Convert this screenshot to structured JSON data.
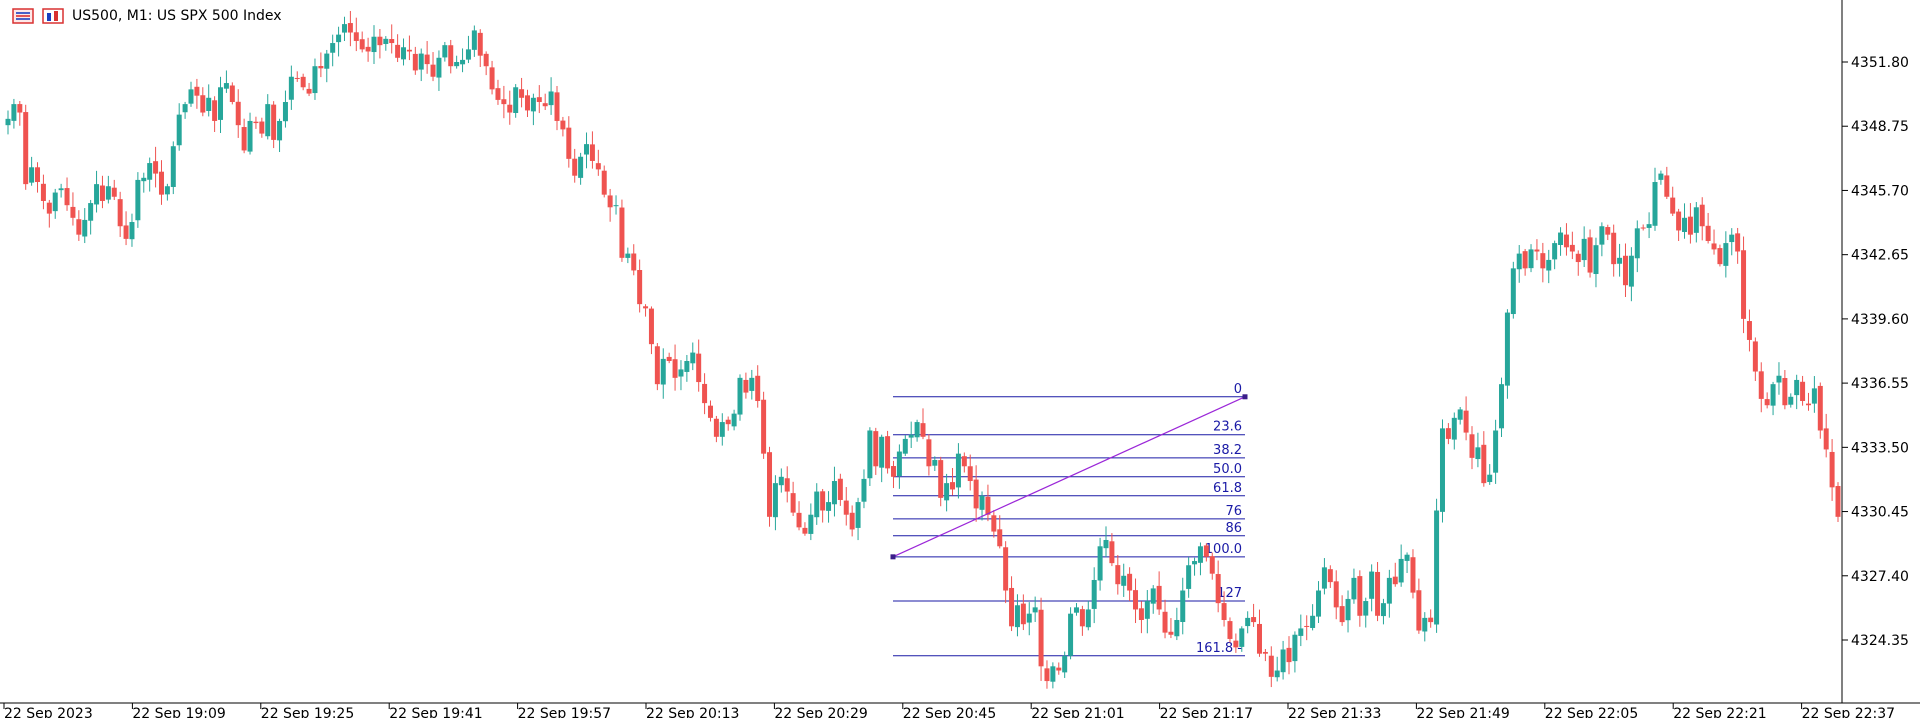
{
  "header": {
    "symbol_label": "US500, M1:  US SPX 500 Index",
    "menu_icon": "chart-menu-icon",
    "type_icon": "chart-type-icon"
  },
  "colors": {
    "bull": "#26a69a",
    "bear": "#ef5350",
    "fib_line": "#1a1aa6",
    "trend_line": "#9b27d8",
    "axis": "#000000",
    "background": "#ffffff"
  },
  "chart_data": {
    "type": "candlestick",
    "title": "US500, M1:  US SPX 500 Index",
    "x_ticks": [
      "22 Sep 2023",
      "22 Sep 19:09",
      "22 Sep 19:25",
      "22 Sep 19:41",
      "22 Sep 19:57",
      "22 Sep 20:13",
      "22 Sep 20:29",
      "22 Sep 20:45",
      "22 Sep 21:01",
      "22 Sep 21:17",
      "22 Sep 21:33",
      "22 Sep 21:49",
      "22 Sep 22:05",
      "22 Sep 22:21",
      "22 Sep 22:37"
    ],
    "y_ticks": [
      "4351.80",
      "4348.75",
      "4345.70",
      "4342.65",
      "4339.60",
      "4336.55",
      "4333.50",
      "4330.45",
      "4327.40",
      "4324.35"
    ],
    "ylim": [
      4321.0,
      4354.0
    ],
    "grid": false,
    "closes": [
      4349.1,
      4349.8,
      4349.4,
      4346.0,
      4346.8,
      4346.1,
      4345.2,
      4344.6,
      4345.6,
      4345.8,
      4345.0,
      4344.4,
      4343.6,
      4344.3,
      4345.1,
      4346.0,
      4345.2,
      4345.9,
      4345.4,
      4344.0,
      4343.4,
      4344.2,
      4346.2,
      4346.3,
      4347.0,
      4346.5,
      4345.5,
      4345.9,
      4347.8,
      4349.3,
      4349.8,
      4350.5,
      4350.2,
      4349.4,
      4350.1,
      4349.0,
      4350.6,
      4350.8,
      4349.9,
      4348.8,
      4347.6,
      4349.0,
      4348.9,
      4348.4,
      4349.8,
      4348.1,
      4349.0,
      4349.9,
      4351.1,
      4351.0,
      4350.6,
      4350.3,
      4351.6,
      4351.5,
      4352.2,
      4352.7,
      4353.1,
      4353.6,
      4353.2,
      4352.8,
      4352.4,
      4352.3,
      4353.0,
      4352.6,
      4352.9,
      4352.7,
      4352.0,
      4352.5,
      4352.3,
      4351.4,
      4352.2,
      4351.7,
      4351.1,
      4352.0,
      4352.6,
      4351.6,
      4351.8,
      4351.9,
      4352.4,
      4353.3,
      4352.1,
      4351.6,
      4350.5,
      4350.0,
      4349.8,
      4349.4,
      4350.6,
      4350.1,
      4349.5,
      4350.1,
      4349.9,
      4349.7,
      4350.4,
      4349.0,
      4348.6,
      4347.2,
      4346.4,
      4347.3,
      4347.9,
      4347.1,
      4346.7,
      4345.5,
      4344.9,
      4345.0,
      4342.5,
      4342.7,
      4341.9,
      4340.3,
      4340.1,
      4338.4,
      4336.5,
      4337.7,
      4337.6,
      4336.8,
      4337.2,
      4337.6,
      4338.0,
      4336.6,
      4335.6,
      4334.9,
      4334.0,
      4334.7,
      4334.6,
      4335.1,
      4336.8,
      4336.1,
      4336.8,
      4335.7,
      4333.2,
      4330.2,
      4331.8,
      4332.1,
      4331.4,
      4330.4,
      4329.7,
      4329.4,
      4330.3,
      4331.4,
      4330.5,
      4330.9,
      4331.9,
      4331.0,
      4330.3,
      4329.6,
      4330.9,
      4332.0,
      4334.3,
      4332.6,
      4334.0,
      4332.5,
      4332.1,
      4333.3,
      4333.9,
      4334.1,
      4334.7,
      4334.0,
      4332.6,
      4332.9,
      4331.1,
      4331.8,
      4331.5,
      4333.2,
      4332.6,
      4331.9,
      4330.6,
      4331.2,
      4330.3,
      4329.5,
      4328.8,
      4326.7,
      4325.0,
      4326.0,
      4325.1,
      4325.6,
      4325.9,
      4323.1,
      4322.4,
      4323.1,
      4322.9,
      4323.6,
      4325.6,
      4325.9,
      4325.0,
      4325.8,
      4327.2,
      4328.8,
      4329.1,
      4328.0,
      4327.0,
      4327.4,
      4326.7,
      4325.8,
      4325.3,
      4326.2,
      4326.8,
      4325.8,
      4324.7,
      4324.6,
      4325.3,
      4326.7,
      4327.9,
      4328.1,
      4328.8,
      4328.3,
      4327.5,
      4326.1,
      4325.3,
      4324.4,
      4324.0,
      4324.9,
      4325.4,
      4325.2,
      4323.7,
      4323.7,
      4322.6,
      4322.9,
      4323.9,
      4323.3,
      4324.6,
      4324.9,
      4325.0,
      4325.5,
      4326.7,
      4327.8,
      4327.1,
      4325.9,
      4325.2,
      4326.3,
      4327.3,
      4325.5,
      4326.2,
      4327.6,
      4325.5,
      4326.1,
      4327.3,
      4327.0,
      4328.2,
      4328.4,
      4326.6,
      4324.8,
      4325.4,
      4325.2,
      4330.5,
      4334.4,
      4333.9,
      4334.9,
      4335.3,
      4334.2,
      4333.0,
      4333.5,
      4331.8,
      4332.2,
      4334.3,
      4336.5,
      4339.9,
      4342.0,
      4342.7,
      4342.0,
      4342.9,
      4342.8,
      4342.0,
      4342.4,
      4343.2,
      4343.7,
      4343.0,
      4342.8,
      4342.3,
      4343.4,
      4341.8,
      4343.1,
      4344.0,
      4343.6,
      4342.2,
      4342.5,
      4341.2,
      4342.6,
      4343.9,
      4343.9,
      4344.1,
      4346.1,
      4346.5,
      4345.4,
      4344.6,
      4343.8,
      4344.4,
      4343.6,
      4344.9,
      4344.0,
      4343.3,
      4342.9,
      4342.2,
      4343.2,
      4343.6,
      4342.8,
      4339.6,
      4338.6,
      4337.1,
      4335.8,
      4335.5,
      4336.5,
      4336.9,
      4335.5,
      4335.9,
      4336.7,
      4335.7,
      4335.5,
      4336.3,
      4334.3,
      4333.4,
      4331.6,
      4330.2
    ],
    "fibonacci": {
      "levels": [
        {
          "label": "0",
          "price": 4335.9
        },
        {
          "label": "23.6",
          "price": 4334.1
        },
        {
          "label": "38.2",
          "price": 4333.0
        },
        {
          "label": "50.0",
          "price": 4332.1
        },
        {
          "label": "61.8",
          "price": 4331.2
        },
        {
          "label": "76",
          "price": 4330.1
        },
        {
          "label": "86",
          "price": 4329.3
        },
        {
          "label": "100.0",
          "price": 4328.3
        },
        {
          "label": "127",
          "price": 4326.2
        },
        {
          "label": "161.8 -",
          "price": 4323.6
        }
      ],
      "anchor_low": 4328.3,
      "anchor_high": 4335.9
    }
  }
}
